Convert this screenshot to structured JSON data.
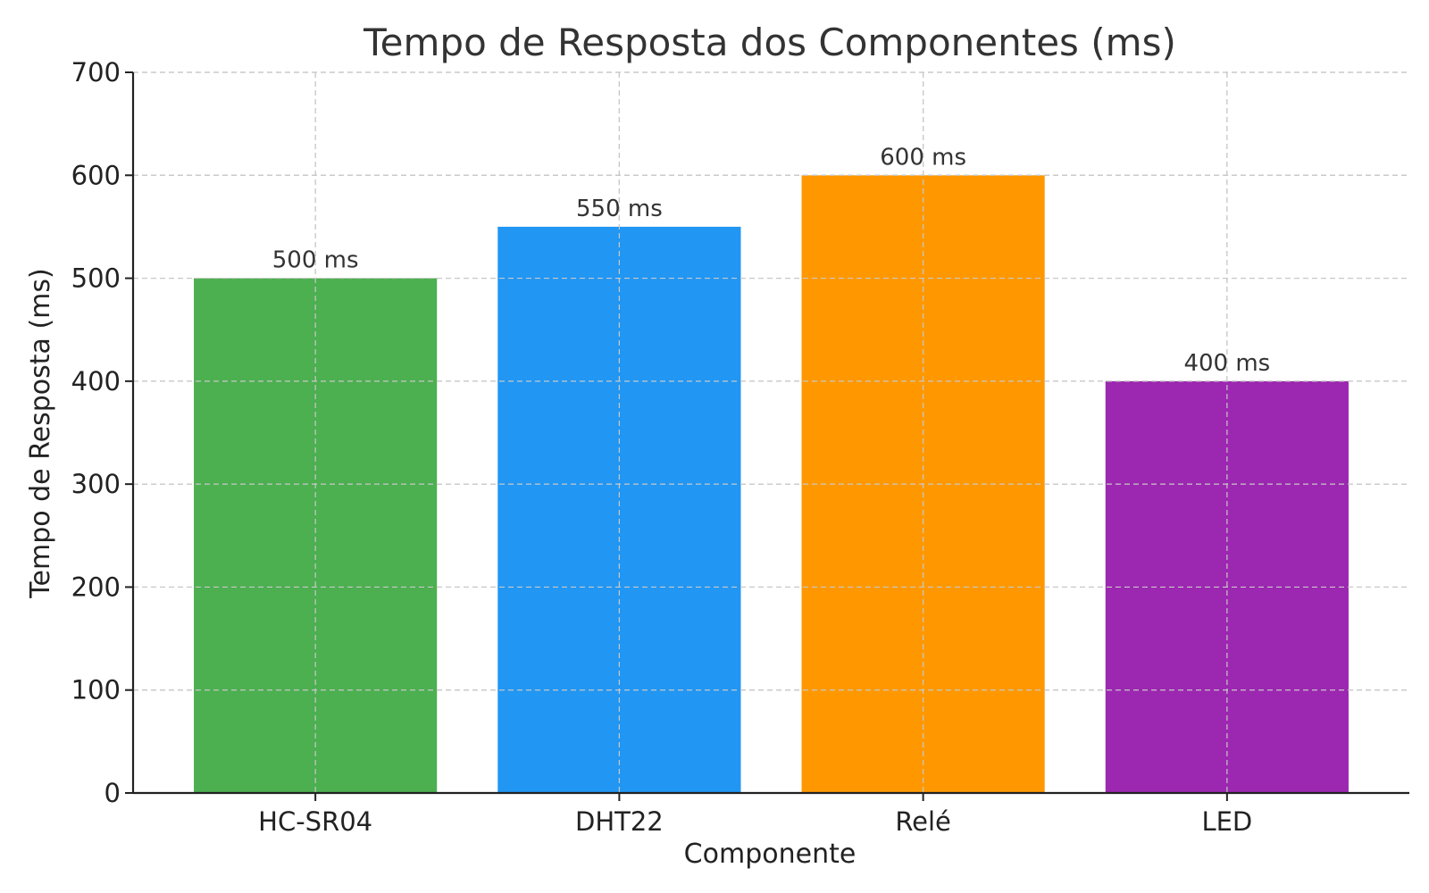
{
  "chart_data": {
    "type": "bar",
    "title": "Tempo de Resposta dos Componentes (ms)",
    "xlabel": "Componente",
    "ylabel": "Tempo de Resposta (ms)",
    "categories": [
      "HC-SR04",
      "DHT22",
      "Relé",
      "LED"
    ],
    "values": [
      500,
      550,
      600,
      400
    ],
    "data_labels": [
      "500 ms",
      "550 ms",
      "600 ms",
      "400 ms"
    ],
    "colors": [
      "#4caf50",
      "#2196f3",
      "#ff9800",
      "#9c27b0"
    ],
    "ylim": [
      0,
      700
    ],
    "yticks": [
      0,
      100,
      200,
      300,
      400,
      500,
      600,
      700
    ],
    "grid": true,
    "legend": "none"
  }
}
